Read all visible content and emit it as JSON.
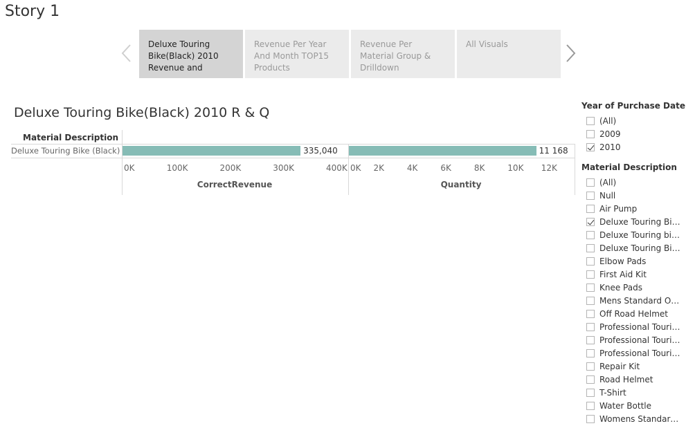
{
  "story": {
    "title": "Story 1",
    "points": [
      {
        "label": "Deluxe Touring Bike(Black) 2010 Revenue and",
        "active": true
      },
      {
        "label": "Revenue Per Year And Month TOP15 Products",
        "active": false
      },
      {
        "label": "Revenue Per Material Group & Drilldown",
        "active": false
      },
      {
        "label": "All Visuals",
        "active": false
      }
    ]
  },
  "viz": {
    "title": "Deluxe Touring Bike(Black) 2010 R & Q",
    "row_header": "Material Description",
    "row_label": "Deluxe Touring Bike (Black)"
  },
  "chart_data": [
    {
      "type": "bar",
      "orientation": "horizontal",
      "categories": [
        "Deluxe Touring Bike (Black)"
      ],
      "values": [
        335040
      ],
      "value_labels": [
        "335,040"
      ],
      "xlabel": "CorrectRevenue",
      "ylabel": "Material Description",
      "xlim": [
        0,
        400000
      ],
      "ticks": [
        "0K",
        "100K",
        "200K",
        "300K",
        "400K"
      ],
      "color": "#86bcb6"
    },
    {
      "type": "bar",
      "orientation": "horizontal",
      "categories": [
        "Deluxe Touring Bike (Black)"
      ],
      "values": [
        11168
      ],
      "value_labels": [
        "11 168"
      ],
      "xlabel": "Quantity",
      "ylabel": "Material Description",
      "xlim": [
        0,
        13000
      ],
      "ticks": [
        "0K",
        "2K",
        "4K",
        "6K",
        "8K",
        "10K",
        "12K"
      ],
      "color": "#86bcb6"
    }
  ],
  "filters": {
    "year": {
      "title": "Year of Purchase Date",
      "items": [
        {
          "label": "(All)",
          "checked": false
        },
        {
          "label": "2009",
          "checked": false
        },
        {
          "label": "2010",
          "checked": true
        }
      ]
    },
    "material": {
      "title": "Material Description",
      "items": [
        {
          "label": "(All)",
          "checked": false
        },
        {
          "label": "Null",
          "checked": false
        },
        {
          "label": "Air Pump",
          "checked": false
        },
        {
          "label": "Deluxe Touring Bik...",
          "checked": true
        },
        {
          "label": "Deluxe Touring bike...",
          "checked": false
        },
        {
          "label": "Deluxe Touring Bik...",
          "checked": false
        },
        {
          "label": "Elbow Pads",
          "checked": false
        },
        {
          "label": "First Aid Kit",
          "checked": false
        },
        {
          "label": "Knee Pads",
          "checked": false
        },
        {
          "label": "Mens Standard Off ...",
          "checked": false
        },
        {
          "label": "Off Road Helmet",
          "checked": false
        },
        {
          "label": "Professional Tourin...",
          "checked": false
        },
        {
          "label": "Professional Tourin...",
          "checked": false
        },
        {
          "label": "Professional Tourin...",
          "checked": false
        },
        {
          "label": "Repair Kit",
          "checked": false
        },
        {
          "label": "Road Helmet",
          "checked": false
        },
        {
          "label": "T-Shirt",
          "checked": false
        },
        {
          "label": "Water Bottle",
          "checked": false
        },
        {
          "label": "Womens Standard ...",
          "checked": false
        }
      ]
    }
  },
  "icons": {
    "prev": "chevron-left-icon",
    "next": "chevron-right-icon"
  }
}
